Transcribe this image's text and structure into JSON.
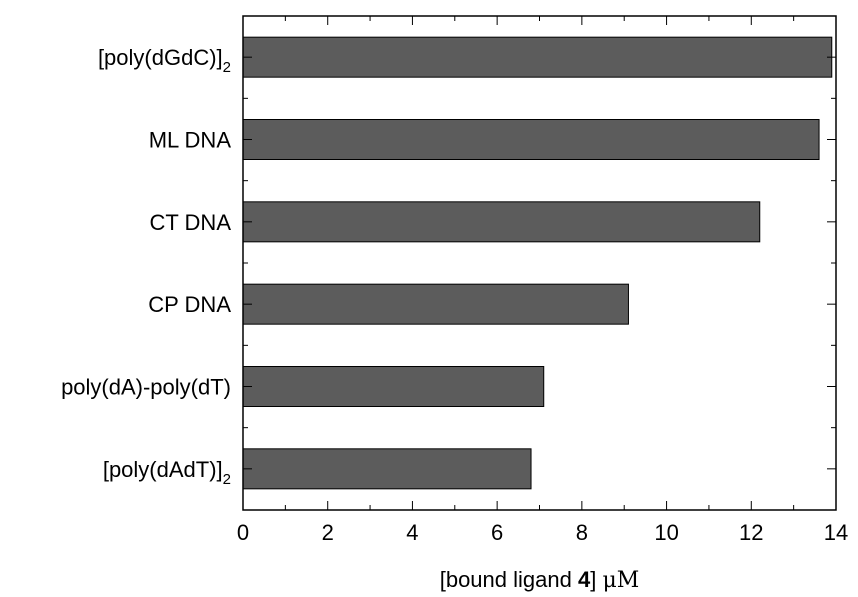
{
  "chart_data": {
    "type": "bar",
    "orientation": "horizontal",
    "categories": [
      {
        "main": "[poly(dGdC)]",
        "sub": "2"
      },
      {
        "main": "ML DNA",
        "sub": ""
      },
      {
        "main": "CT DNA",
        "sub": ""
      },
      {
        "main": "CP DNA",
        "sub": ""
      },
      {
        "main": "poly(dA)-poly(dT)",
        "sub": ""
      },
      {
        "main": "[poly(dAdT)]",
        "sub": "2"
      }
    ],
    "values": [
      13.9,
      13.6,
      12.2,
      9.1,
      7.1,
      6.8
    ],
    "xlabel": {
      "pre": "[bound ligand ",
      "bold": "4",
      "post": "] ",
      "unit": "μM"
    },
    "xlim": [
      0,
      14
    ],
    "xticks": [
      0,
      2,
      4,
      6,
      8,
      10,
      12,
      14
    ],
    "grid": false,
    "bar_color": "#5c5c5c"
  }
}
